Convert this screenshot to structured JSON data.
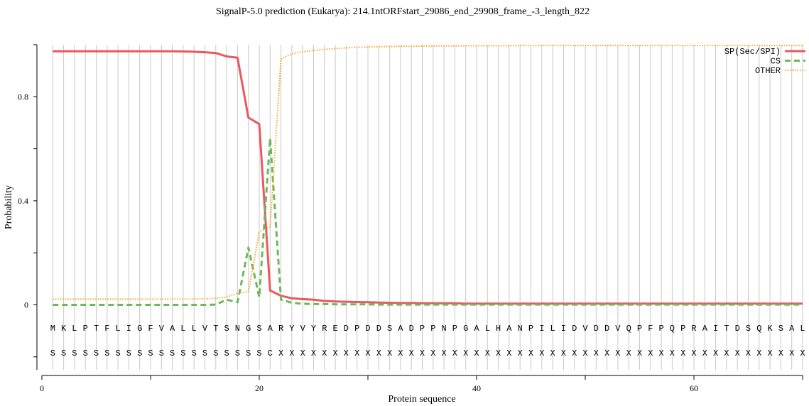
{
  "chart_data": {
    "type": "line",
    "title": "SignalP-5.0 prediction (Eukarya):  214.1ntORFstart_29086_end_29908_frame_-3_length_822",
    "xlabel": "Protein sequence",
    "ylabel": "Probability",
    "xlim": [
      0,
      70
    ],
    "ylim": [
      -0.25,
      1.0
    ],
    "x_ticks": [
      0,
      20,
      40,
      60
    ],
    "y_ticks": [
      0,
      0.4,
      0.8
    ],
    "grid": "vertical lines at every residue position",
    "legend_position": "top-right",
    "positions": [
      1,
      2,
      3,
      4,
      5,
      6,
      7,
      8,
      9,
      10,
      11,
      12,
      13,
      14,
      15,
      16,
      17,
      18,
      19,
      20,
      21,
      22,
      23,
      24,
      25,
      26,
      27,
      28,
      29,
      30,
      31,
      32,
      33,
      34,
      35,
      36,
      37,
      38,
      39,
      40,
      41,
      42,
      43,
      44,
      45,
      46,
      47,
      48,
      49,
      50,
      51,
      52,
      53,
      54,
      55,
      56,
      57,
      58,
      59,
      60,
      61,
      62,
      63,
      64,
      65,
      66,
      67,
      68,
      69,
      70
    ],
    "sequence": [
      "M",
      "K",
      "L",
      "P",
      "T",
      "F",
      "L",
      "I",
      "G",
      "F",
      "V",
      "A",
      "L",
      "L",
      "V",
      "T",
      "S",
      "N",
      "G",
      "S",
      "A",
      "R",
      "Y",
      "V",
      "Y",
      "R",
      "E",
      "D",
      "P",
      "D",
      "D",
      "S",
      "A",
      "D",
      "P",
      "P",
      "N",
      "P",
      "G",
      "A",
      "L",
      "H",
      "A",
      "N",
      "P",
      "I",
      "L",
      "I",
      "D",
      "V",
      "D",
      "D",
      "V",
      "Q",
      "P",
      "F",
      "P",
      "Q",
      "P",
      "R",
      "A",
      "I",
      "T",
      "D",
      "S",
      "Q",
      "K",
      "S",
      "A",
      "L"
    ],
    "annotation": [
      "S",
      "S",
      "S",
      "S",
      "S",
      "S",
      "S",
      "S",
      "S",
      "S",
      "S",
      "S",
      "S",
      "S",
      "S",
      "S",
      "S",
      "S",
      "S",
      "S",
      "C",
      "X",
      "X",
      "X",
      "X",
      "X",
      "X",
      "X",
      "X",
      "X",
      "X",
      "X",
      "X",
      "X",
      "X",
      "X",
      "X",
      "X",
      "X",
      "X",
      "X",
      "X",
      "X",
      "X",
      "X",
      "X",
      "X",
      "X",
      "X",
      "X",
      "X",
      "X",
      "X",
      "X",
      "X",
      "X",
      "X",
      "X",
      "X",
      "X",
      "X",
      "X",
      "X",
      "X",
      "X",
      "X",
      "X",
      "X",
      "X",
      "X"
    ],
    "series": [
      {
        "name": "SP(Sec/SPI)",
        "color": "#e8585e",
        "style": "solid",
        "values": [
          0.975,
          0.975,
          0.975,
          0.975,
          0.975,
          0.975,
          0.975,
          0.975,
          0.975,
          0.975,
          0.975,
          0.975,
          0.974,
          0.973,
          0.971,
          0.968,
          0.955,
          0.95,
          0.72,
          0.695,
          0.055,
          0.035,
          0.025,
          0.022,
          0.02,
          0.015,
          0.013,
          0.012,
          0.011,
          0.01,
          0.009,
          0.008,
          0.007,
          0.007,
          0.006,
          0.006,
          0.006,
          0.006,
          0.005,
          0.005,
          0.005,
          0.005,
          0.005,
          0.005,
          0.005,
          0.005,
          0.005,
          0.005,
          0.005,
          0.005,
          0.005,
          0.005,
          0.005,
          0.005,
          0.005,
          0.005,
          0.005,
          0.005,
          0.005,
          0.005,
          0.005,
          0.005,
          0.005,
          0.005,
          0.005,
          0.005,
          0.005,
          0.005,
          0.005,
          0.005
        ]
      },
      {
        "name": "CS",
        "color": "#6db85c",
        "style": "dashed",
        "values": [
          0.0,
          0.0,
          0.0,
          0.0,
          0.0,
          0.0,
          0.0,
          0.0,
          0.0,
          0.0,
          0.0,
          0.0,
          0.0,
          0.0,
          0.0,
          0.001,
          0.02,
          0.01,
          0.22,
          0.03,
          0.64,
          0.02,
          0.008,
          0.004,
          0.003,
          0.003,
          0.002,
          0.002,
          0.002,
          0.002,
          0.001,
          0.001,
          0.001,
          0.001,
          0.001,
          0.001,
          0.001,
          0.001,
          0.001,
          0.001,
          0.001,
          0.001,
          0.001,
          0.001,
          0.001,
          0.001,
          0.001,
          0.001,
          0.001,
          0.001,
          0.001,
          0.001,
          0.001,
          0.001,
          0.001,
          0.001,
          0.001,
          0.001,
          0.001,
          0.001,
          0.001,
          0.001,
          0.001,
          0.001,
          0.001,
          0.001,
          0.001,
          0.001,
          0.001,
          0.001
        ]
      },
      {
        "name": "OTHER",
        "color": "#f5a623",
        "style": "dotted",
        "values": [
          0.022,
          0.022,
          0.022,
          0.022,
          0.022,
          0.022,
          0.022,
          0.022,
          0.022,
          0.022,
          0.022,
          0.022,
          0.022,
          0.023,
          0.024,
          0.025,
          0.03,
          0.045,
          0.05,
          0.28,
          0.3,
          0.945,
          0.965,
          0.973,
          0.978,
          0.982,
          0.985,
          0.988,
          0.99,
          0.991,
          0.992,
          0.993,
          0.994,
          0.994,
          0.995,
          0.995,
          0.995,
          0.995,
          0.996,
          0.996,
          0.996,
          0.996,
          0.996,
          0.997,
          0.997,
          0.997,
          0.997,
          0.997,
          0.997,
          0.997,
          0.997,
          0.997,
          0.997,
          0.997,
          0.997,
          0.997,
          0.997,
          0.997,
          0.997,
          0.997,
          0.997,
          0.997,
          0.997,
          0.997,
          0.997,
          0.997,
          0.997,
          0.997,
          0.997,
          0.997
        ]
      }
    ]
  }
}
